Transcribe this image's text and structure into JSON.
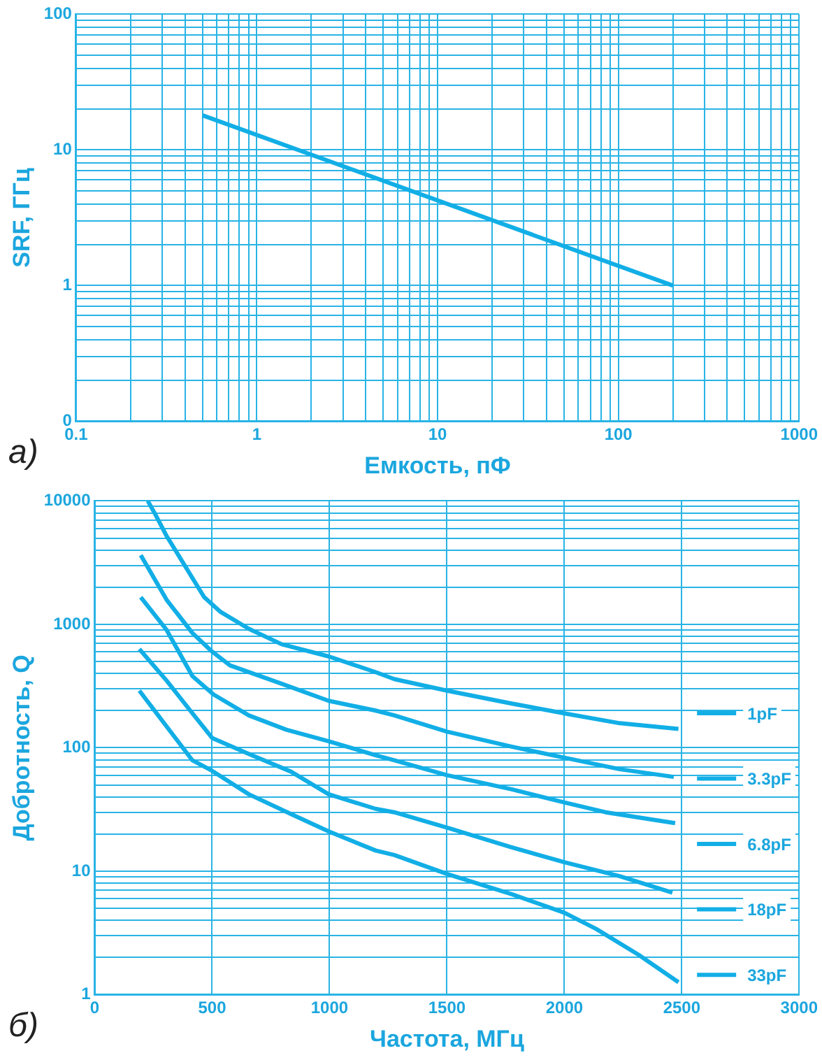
{
  "chart_data": [
    {
      "type": "line",
      "xlabel": "Емкость, пФ",
      "ylabel": "SRF, ГГц",
      "annotations": [
        "а)"
      ],
      "log": "xy",
      "grid": true,
      "marker": "none",
      "line_style": "solid",
      "series": [
        {
          "color": "#12aee6",
          "x": [
            0.5,
            200
          ],
          "values": [
            18,
            1
          ]
        }
      ],
      "xlim": [
        0.1,
        1000
      ],
      "ylim": [
        0.1,
        100
      ],
      "xticks": [
        0.1,
        {
          "value": 0.2,
          "label": null
        },
        {
          "value": 0.3,
          "label": null
        },
        {
          "value": 0.4,
          "label": null
        },
        {
          "value": 0.5,
          "label": null
        },
        {
          "value": 0.6,
          "label": null
        },
        {
          "value": 0.7,
          "label": null
        },
        {
          "value": 0.8,
          "label": null
        },
        {
          "value": 0.9,
          "label": null
        },
        1,
        {
          "value": 2,
          "label": null
        },
        {
          "value": 3,
          "label": null
        },
        {
          "value": 4,
          "label": null
        },
        {
          "value": 5,
          "label": null
        },
        {
          "value": 6,
          "label": null
        },
        {
          "value": 7,
          "label": null
        },
        {
          "value": 8,
          "label": null
        },
        {
          "value": 9,
          "label": null
        },
        10,
        {
          "value": 20,
          "label": null
        },
        {
          "value": 30,
          "label": null
        },
        {
          "value": 40,
          "label": null
        },
        {
          "value": 50,
          "label": null
        },
        {
          "value": 60,
          "label": null
        },
        {
          "value": 70,
          "label": null
        },
        {
          "value": 80,
          "label": null
        },
        {
          "value": 90,
          "label": null
        },
        100,
        {
          "value": 200,
          "label": null
        },
        {
          "value": 300,
          "label": null
        },
        {
          "value": 400,
          "label": null
        },
        {
          "value": 500,
          "label": null
        },
        {
          "value": 600,
          "label": null
        },
        {
          "value": 700,
          "label": null
        },
        {
          "value": 800,
          "label": null
        },
        {
          "value": 900,
          "label": null
        },
        1000
      ],
      "yticks": [
        {
          "value": 0.1,
          "label": "0"
        },
        {
          "value": 0.2,
          "label": null
        },
        {
          "value": 0.3,
          "label": null
        },
        {
          "value": 0.4,
          "label": null
        },
        {
          "value": 0.5,
          "label": null
        },
        {
          "value": 0.6,
          "label": null
        },
        {
          "value": 0.7,
          "label": null
        },
        {
          "value": 0.8,
          "label": null
        },
        {
          "value": 0.9,
          "label": null
        },
        1,
        {
          "value": 2,
          "label": null
        },
        {
          "value": 3,
          "label": null
        },
        {
          "value": 4,
          "label": null
        },
        {
          "value": 5,
          "label": null
        },
        {
          "value": 6,
          "label": null
        },
        {
          "value": 7,
          "label": null
        },
        {
          "value": 8,
          "label": null
        },
        {
          "value": 9,
          "label": null
        },
        10,
        {
          "value": 20,
          "label": null
        },
        {
          "value": 30,
          "label": null
        },
        {
          "value": 40,
          "label": null
        },
        {
          "value": 50,
          "label": null
        },
        {
          "value": 60,
          "label": null
        },
        {
          "value": 70,
          "label": null
        },
        {
          "value": 80,
          "label": null
        },
        {
          "value": 90,
          "label": null
        },
        100
      ]
    },
    {
      "type": "line",
      "xlabel": "Частота, МГц",
      "ylabel": "Добротность, Q",
      "annotations": [
        "б)"
      ],
      "log": "y",
      "grid": true,
      "marker": "none",
      "line_style": "solid",
      "legend": "right",
      "series": [
        {
          "name": "1pF",
          "color": "#12aee6",
          "x": [
            226,
            256,
            306,
            466,
            536,
            656,
            796,
            996,
            1196,
            1276,
            1500,
            1776,
            2000,
            2236,
            2486
          ],
          "values": [
            10000,
            7900,
            5200,
            1660,
            1260,
            920,
            690,
            550,
            410,
            360,
            290,
            228,
            190,
            158,
            142
          ]
        },
        {
          "name": "3.3pF",
          "color": "#12aee6",
          "x": [
            196,
            306,
            416,
            496,
            576,
            796,
            996,
            1196,
            1276,
            1500,
            1776,
            2000,
            2236,
            2466
          ],
          "values": [
            3630,
            1580,
            850,
            610,
            465,
            330,
            240,
            200,
            183,
            135,
            102,
            83,
            67,
            58
          ]
        },
        {
          "name": "6.8pF",
          "color": "#12aee6",
          "x": [
            196,
            306,
            416,
            506,
            656,
            816,
            996,
            1196,
            1276,
            1500,
            1776,
            2000,
            2176,
            2472
          ],
          "values": [
            1660,
            900,
            380,
            270,
            183,
            140,
            113,
            87,
            79,
            60,
            46,
            36,
            30,
            24.5
          ]
        },
        {
          "name": "18pF",
          "color": "#12aee6",
          "x": [
            190,
            306,
            416,
            500,
            656,
            836,
            996,
            1196,
            1276,
            1500,
            1776,
            2000,
            2236,
            2460
          ],
          "values": [
            630,
            350,
            190,
            120,
            89,
            64,
            42,
            32,
            30,
            22.5,
            15.6,
            11.8,
            9.1,
            6.7
          ]
        },
        {
          "name": "33pF",
          "color": "#12aee6",
          "x": [
            190,
            416,
            500,
            656,
            836,
            996,
            1196,
            1276,
            1500,
            1776,
            2000,
            2136,
            2316,
            2486
          ],
          "values": [
            290,
            79,
            65,
            42,
            29,
            21,
            14.7,
            13.5,
            9.5,
            6.5,
            4.6,
            3.4,
            2.1,
            1.26
          ]
        }
      ],
      "xlim": [
        0,
        3000
      ],
      "ylim": [
        1,
        10000
      ],
      "xticks": [
        0,
        500,
        1000,
        1500,
        2000,
        2500,
        3000
      ],
      "yticks": [
        1,
        {
          "value": 2,
          "label": null
        },
        {
          "value": 3,
          "label": null
        },
        {
          "value": 4,
          "label": null
        },
        {
          "value": 5,
          "label": null
        },
        {
          "value": 6,
          "label": null
        },
        {
          "value": 7,
          "label": null
        },
        {
          "value": 8,
          "label": null
        },
        {
          "value": 9,
          "label": null
        },
        10,
        {
          "value": 20,
          "label": null
        },
        {
          "value": 30,
          "label": null
        },
        {
          "value": 40,
          "label": null
        },
        {
          "value": 50,
          "label": null
        },
        {
          "value": 60,
          "label": null
        },
        {
          "value": 70,
          "label": null
        },
        {
          "value": 80,
          "label": null
        },
        {
          "value": 90,
          "label": null
        },
        100,
        {
          "value": 200,
          "label": null
        },
        {
          "value": 300,
          "label": null
        },
        {
          "value": 400,
          "label": null
        },
        {
          "value": 500,
          "label": null
        },
        {
          "value": 600,
          "label": null
        },
        {
          "value": 700,
          "label": null
        },
        {
          "value": 800,
          "label": null
        },
        {
          "value": 900,
          "label": null
        },
        1000,
        {
          "value": 2000,
          "label": null
        },
        {
          "value": 3000,
          "label": null
        },
        {
          "value": 4000,
          "label": null
        },
        {
          "value": 5000,
          "label": null
        },
        {
          "value": 6000,
          "label": null
        },
        {
          "value": 7000,
          "label": null
        },
        {
          "value": 8000,
          "label": null
        },
        {
          "value": 9000,
          "label": null
        },
        10000
      ]
    }
  ]
}
